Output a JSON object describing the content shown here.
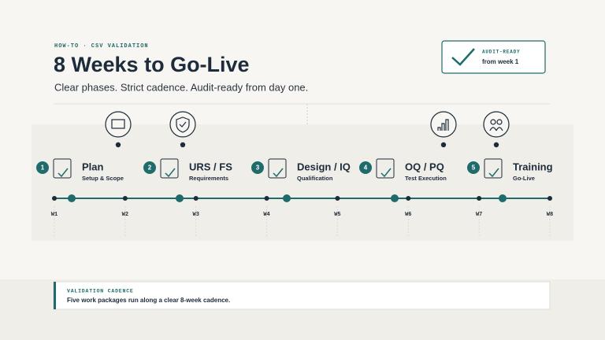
{
  "header": {
    "eyebrow": "HOW-TO · CSV VALIDATION",
    "title": "8 Weeks to Go-Live",
    "subtitle": "Clear phases. Strict cadence. Audit-ready from day one."
  },
  "badge": {
    "label": "AUDIT-READY",
    "text": "from week 1"
  },
  "phases": [
    {
      "number": "1",
      "title": "Plan",
      "subtitle": "Setup & Scope"
    },
    {
      "number": "2",
      "title": "URS / FS",
      "subtitle": "Requirements"
    },
    {
      "number": "3",
      "title": "Design / IQ",
      "subtitle": "Qualification"
    },
    {
      "number": "4",
      "title": "OQ / PQ",
      "subtitle": "Test Execution"
    },
    {
      "number": "5",
      "title": "Training",
      "subtitle": "Go-Live"
    }
  ],
  "weeks": [
    "W1",
    "W2",
    "W3",
    "W4",
    "W5",
    "W6",
    "W7",
    "W8"
  ],
  "cadence": {
    "label": "VALIDATION CADENCE",
    "text": "Five work packages run along a clear 8-week cadence."
  }
}
